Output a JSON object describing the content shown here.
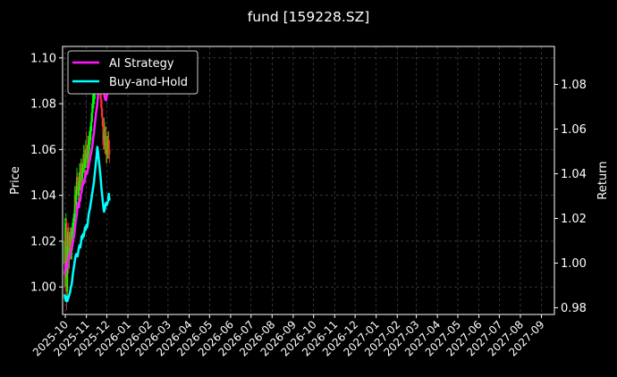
{
  "chart_data": {
    "type": "line",
    "title": "fund [159228.SZ]",
    "ylabel_left": "Price",
    "ylabel_right": "Return",
    "ylim_left": [
      0.988,
      1.105
    ],
    "ylim_right": [
      0.977,
      1.097
    ],
    "yticks_left": [
      "1.00",
      "1.02",
      "1.04",
      "1.06",
      "1.08",
      "1.10"
    ],
    "yticks_right": [
      "0.98",
      "1.00",
      "1.02",
      "1.04",
      "1.06",
      "1.08"
    ],
    "xlim": [
      "2025-09-27",
      "2027-09-20"
    ],
    "xticks": [
      "2025-10",
      "2025-11",
      "2025-12",
      "2026-01",
      "2026-02",
      "2026-03",
      "2026-04",
      "2026-05",
      "2026-06",
      "2026-07",
      "2026-08",
      "2026-09",
      "2026-10",
      "2026-11",
      "2026-12",
      "2027-01",
      "2027-02",
      "2027-03",
      "2027-04",
      "2027-05",
      "2027-06",
      "2027-07",
      "2027-08",
      "2027-09"
    ],
    "grid": true,
    "legend_position": "upper-left",
    "colors": {
      "background": "#000000",
      "up": "#00ff00",
      "down": "#ff3030",
      "ai": "#ff19ff",
      "bh": "#00ffff",
      "grid": "#555555"
    },
    "series": [
      {
        "name": "AI Strategy",
        "axis": "right",
        "color": "#ff19ff",
        "x": [
          "2025-09-30",
          "2025-10-01",
          "2025-10-02",
          "2025-10-03",
          "2025-10-04",
          "2025-10-05",
          "2025-10-06",
          "2025-10-07",
          "2025-10-08",
          "2025-10-09",
          "2025-10-10",
          "2025-10-11",
          "2025-10-12",
          "2025-10-13",
          "2025-10-14",
          "2025-10-15",
          "2025-10-16",
          "2025-10-17",
          "2025-10-18",
          "2025-10-19",
          "2025-10-20",
          "2025-10-21",
          "2025-10-22",
          "2025-10-23",
          "2025-10-24",
          "2025-10-25",
          "2025-10-26",
          "2025-10-27",
          "2025-10-28",
          "2025-10-29",
          "2025-10-30",
          "2025-10-31",
          "2025-11-01",
          "2025-11-02",
          "2025-11-03",
          "2025-11-04",
          "2025-11-05",
          "2025-11-06",
          "2025-11-07",
          "2025-11-08",
          "2025-11-09",
          "2025-11-10",
          "2025-11-11",
          "2025-11-12",
          "2025-11-13",
          "2025-11-14",
          "2025-11-15",
          "2025-11-16",
          "2025-11-17",
          "2025-11-18",
          "2025-11-19",
          "2025-11-20",
          "2025-11-21",
          "2025-11-22",
          "2025-11-23",
          "2025-11-24",
          "2025-11-25",
          "2025-11-26",
          "2025-11-27",
          "2025-11-28",
          "2025-11-29",
          "2025-11-30",
          "2025-12-01",
          "2025-12-02",
          "2025-12-03",
          "2025-12-04",
          "2025-12-05"
        ],
        "values": [
          0.995,
          0.997,
          0.999,
          1.0,
          0.998,
          1.001,
          1.003,
          1.003,
          1.004,
          1.006,
          1.007,
          1.007,
          1.009,
          1.011,
          1.012,
          1.015,
          1.018,
          1.02,
          1.022,
          1.026,
          1.027,
          1.025,
          1.028,
          1.028,
          1.031,
          1.032,
          1.035,
          1.035,
          1.037,
          1.036,
          1.038,
          1.04,
          1.041,
          1.04,
          1.042,
          1.043,
          1.045,
          1.046,
          1.048,
          1.049,
          1.051,
          1.053,
          1.056,
          1.058,
          1.061,
          1.064,
          1.067,
          1.069,
          1.071,
          1.075,
          1.077,
          1.08,
          1.082,
          1.084,
          1.086,
          1.084,
          1.081,
          1.079,
          1.076,
          1.074,
          1.073,
          1.073,
          1.075,
          1.076,
          1.077,
          1.078,
          1.078
        ]
      },
      {
        "name": "Buy-and-Hold",
        "axis": "right",
        "color": "#00ffff",
        "x": [
          "2025-09-30",
          "2025-10-01",
          "2025-10-02",
          "2025-10-03",
          "2025-10-04",
          "2025-10-05",
          "2025-10-06",
          "2025-10-07",
          "2025-10-08",
          "2025-10-09",
          "2025-10-10",
          "2025-10-11",
          "2025-10-12",
          "2025-10-13",
          "2025-10-14",
          "2025-10-15",
          "2025-10-16",
          "2025-10-17",
          "2025-10-18",
          "2025-10-19",
          "2025-10-20",
          "2025-10-21",
          "2025-10-22",
          "2025-10-23",
          "2025-10-24",
          "2025-10-25",
          "2025-10-26",
          "2025-10-27",
          "2025-10-28",
          "2025-10-29",
          "2025-10-30",
          "2025-10-31",
          "2025-11-01",
          "2025-11-02",
          "2025-11-03",
          "2025-11-04",
          "2025-11-05",
          "2025-11-06",
          "2025-11-07",
          "2025-11-08",
          "2025-11-09",
          "2025-11-10",
          "2025-11-11",
          "2025-11-12",
          "2025-11-13",
          "2025-11-14",
          "2025-11-15",
          "2025-11-16",
          "2025-11-17",
          "2025-11-18",
          "2025-11-19",
          "2025-11-20",
          "2025-11-21",
          "2025-11-22",
          "2025-11-23",
          "2025-11-24",
          "2025-11-25",
          "2025-11-26",
          "2025-11-27",
          "2025-11-28",
          "2025-11-29",
          "2025-11-30",
          "2025-12-01",
          "2025-12-02",
          "2025-12-03",
          "2025-12-04",
          "2025-12-05"
        ],
        "values": [
          0.986,
          0.984,
          0.983,
          0.985,
          0.983,
          0.984,
          0.985,
          0.986,
          0.987,
          0.989,
          0.99,
          0.992,
          0.995,
          0.997,
          0.999,
          1.001,
          1.003,
          1.004,
          1.004,
          1.003,
          1.005,
          1.007,
          1.008,
          1.007,
          1.009,
          1.012,
          1.011,
          1.013,
          1.012,
          1.014,
          1.016,
          1.015,
          1.017,
          1.016,
          1.018,
          1.021,
          1.023,
          1.024,
          1.026,
          1.028,
          1.03,
          1.032,
          1.034,
          1.036,
          1.039,
          1.042,
          1.045,
          1.048,
          1.052,
          1.05,
          1.047,
          1.044,
          1.041,
          1.038,
          1.034,
          1.031,
          1.028,
          1.025,
          1.023,
          1.024,
          1.026,
          1.027,
          1.026,
          1.027,
          1.028,
          1.031,
          1.028
        ]
      }
    ],
    "candles": {
      "axis": "left",
      "x": [
        "2025-09-30",
        "2025-10-01",
        "2025-10-02",
        "2025-10-03",
        "2025-10-04",
        "2025-10-05",
        "2025-10-06",
        "2025-10-07",
        "2025-10-08",
        "2025-10-09",
        "2025-10-10",
        "2025-10-11",
        "2025-10-12",
        "2025-10-13",
        "2025-10-14",
        "2025-10-15",
        "2025-10-16",
        "2025-10-17",
        "2025-10-18",
        "2025-10-19",
        "2025-10-20",
        "2025-10-21",
        "2025-10-22",
        "2025-10-23",
        "2025-10-24",
        "2025-10-25",
        "2025-10-26",
        "2025-10-27",
        "2025-10-28",
        "2025-10-29",
        "2025-10-30",
        "2025-10-31",
        "2025-11-01",
        "2025-11-02",
        "2025-11-03",
        "2025-11-04",
        "2025-11-05",
        "2025-11-06",
        "2025-11-07",
        "2025-11-08",
        "2025-11-09",
        "2025-11-10",
        "2025-11-11",
        "2025-11-12",
        "2025-11-13",
        "2025-11-14",
        "2025-11-15",
        "2025-11-16",
        "2025-11-17",
        "2025-11-18",
        "2025-11-19",
        "2025-11-20",
        "2025-11-21",
        "2025-11-22",
        "2025-11-23",
        "2025-11-24",
        "2025-11-25",
        "2025-11-26",
        "2025-11-27",
        "2025-11-28",
        "2025-11-29",
        "2025-11-30",
        "2025-12-01",
        "2025-12-02",
        "2025-12-03",
        "2025-12-04",
        "2025-12-05"
      ],
      "open": [
        1.01,
        1.022,
        1.004,
        1.028,
        0.998,
        1.018,
        1.024,
        1.012,
        1.02,
        1.018,
        1.022,
        1.016,
        1.024,
        1.026,
        1.028,
        1.03,
        1.04,
        1.036,
        1.042,
        1.048,
        1.044,
        1.04,
        1.046,
        1.05,
        1.046,
        1.052,
        1.048,
        1.05,
        1.054,
        1.058,
        1.052,
        1.056,
        1.06,
        1.056,
        1.058,
        1.062,
        1.058,
        1.064,
        1.066,
        1.068,
        1.072,
        1.076,
        1.08,
        1.082,
        1.084,
        1.086,
        1.09,
        1.092,
        1.094,
        1.092,
        1.098,
        1.094,
        1.09,
        1.086,
        1.082,
        1.078,
        1.074,
        1.07,
        1.064,
        1.068,
        1.062,
        1.066,
        1.058,
        1.062,
        1.06,
        1.064,
        1.06
      ],
      "close": [
        1.02,
        1.004,
        1.028,
        0.998,
        1.018,
        1.024,
        1.012,
        1.02,
        1.018,
        1.022,
        1.016,
        1.024,
        1.026,
        1.028,
        1.03,
        1.04,
        1.036,
        1.042,
        1.048,
        1.044,
        1.04,
        1.046,
        1.05,
        1.046,
        1.052,
        1.048,
        1.05,
        1.054,
        1.058,
        1.052,
        1.056,
        1.06,
        1.056,
        1.058,
        1.062,
        1.058,
        1.064,
        1.066,
        1.068,
        1.072,
        1.076,
        1.08,
        1.082,
        1.084,
        1.086,
        1.09,
        1.092,
        1.094,
        1.092,
        1.098,
        1.094,
        1.09,
        1.086,
        1.082,
        1.078,
        1.074,
        1.07,
        1.064,
        1.068,
        1.062,
        1.066,
        1.058,
        1.062,
        1.06,
        1.064,
        1.06,
        1.058
      ],
      "high": [
        1.03,
        1.026,
        1.032,
        1.03,
        1.022,
        1.026,
        1.028,
        1.024,
        1.026,
        1.026,
        1.026,
        1.028,
        1.03,
        1.032,
        1.034,
        1.044,
        1.044,
        1.046,
        1.052,
        1.05,
        1.048,
        1.05,
        1.054,
        1.054,
        1.056,
        1.056,
        1.054,
        1.058,
        1.062,
        1.062,
        1.06,
        1.064,
        1.068,
        1.062,
        1.066,
        1.066,
        1.068,
        1.07,
        1.072,
        1.076,
        1.08,
        1.084,
        1.086,
        1.088,
        1.09,
        1.094,
        1.096,
        1.098,
        1.1,
        1.102,
        1.1,
        1.098,
        1.094,
        1.09,
        1.086,
        1.082,
        1.078,
        1.074,
        1.074,
        1.072,
        1.07,
        1.07,
        1.066,
        1.066,
        1.068,
        1.068,
        1.064
      ],
      "low": [
        1.0,
        0.995,
        1.0,
        0.99,
        0.994,
        1.012,
        1.006,
        1.008,
        1.012,
        1.012,
        1.012,
        1.012,
        1.018,
        1.022,
        1.024,
        1.026,
        1.032,
        1.032,
        1.038,
        1.04,
        1.036,
        1.036,
        1.042,
        1.042,
        1.042,
        1.044,
        1.044,
        1.046,
        1.05,
        1.048,
        1.048,
        1.052,
        1.052,
        1.052,
        1.054,
        1.054,
        1.054,
        1.06,
        1.062,
        1.064,
        1.068,
        1.072,
        1.076,
        1.078,
        1.08,
        1.082,
        1.086,
        1.088,
        1.088,
        1.088,
        1.09,
        1.086,
        1.082,
        1.078,
        1.074,
        1.07,
        1.062,
        1.06,
        1.06,
        1.058,
        1.058,
        1.054,
        1.054,
        1.056,
        1.056,
        1.056,
        1.054
      ]
    }
  }
}
